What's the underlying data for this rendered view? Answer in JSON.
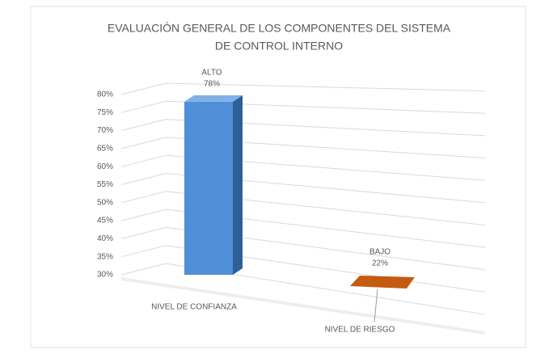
{
  "chart_data": {
    "type": "bar3d",
    "title": [
      "EVALUACIÓN GENERAL DE LOS COMPONENTES DEL SISTEMA",
      "DE CONTROL INTERNO"
    ],
    "categories": [
      "NIVEL DE CONFIANZA",
      "NIVEL DE RIESGO"
    ],
    "point_labels": [
      "ALTO",
      "BAJO"
    ],
    "values": [
      78,
      22
    ],
    "value_labels": [
      "78%",
      "22%"
    ],
    "colors": [
      "#4f8fd8",
      "#c55a11"
    ],
    "ylim": [
      30,
      80
    ],
    "yticks": [
      {
        "value": 30,
        "label": "30%"
      },
      {
        "value": 35,
        "label": "35%"
      },
      {
        "value": 40,
        "label": "40%"
      },
      {
        "value": 45,
        "label": "45%"
      },
      {
        "value": 50,
        "label": "50%"
      },
      {
        "value": 55,
        "label": "55%"
      },
      {
        "value": 60,
        "label": "60%"
      },
      {
        "value": 65,
        "label": "65%"
      },
      {
        "value": 70,
        "label": "70%"
      },
      {
        "value": 75,
        "label": "75%"
      },
      {
        "value": 80,
        "label": "80%"
      }
    ],
    "grid": true
  }
}
